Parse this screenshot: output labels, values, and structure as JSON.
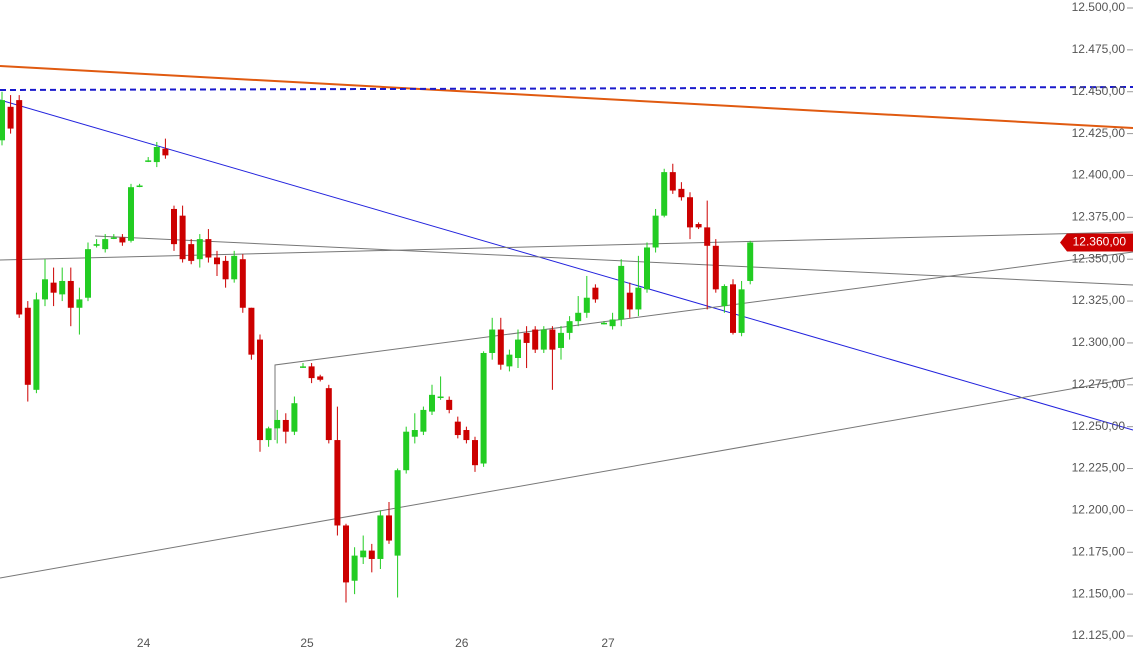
{
  "chart_data": {
    "type": "candlestick",
    "categories": [
      null,
      null,
      null,
      null,
      null,
      null,
      null,
      null,
      null,
      null,
      null,
      null,
      null,
      null,
      null,
      null,
      "24",
      null,
      null,
      null,
      null,
      null,
      null,
      null,
      null,
      null,
      null,
      null,
      null,
      null,
      null,
      null,
      null,
      null,
      null,
      "25",
      null,
      null,
      null,
      null,
      null,
      null,
      null,
      null,
      null,
      null,
      null,
      null,
      null,
      null,
      null,
      null,
      null,
      "26",
      null,
      null,
      null,
      null,
      null,
      null,
      null,
      null,
      null,
      null,
      null,
      null,
      null,
      null,
      null,
      null,
      "27",
      null,
      null,
      null,
      null,
      null,
      null,
      null,
      null,
      null,
      null,
      null,
      null,
      null,
      null,
      null,
      null,
      null
    ],
    "open": [
      12421,
      12441,
      12445,
      12321,
      12272,
      12326,
      12336,
      12329,
      12337,
      12321,
      12327,
      12358,
      12356,
      12363,
      12363,
      12361,
      12394,
      12409,
      12408,
      12416,
      12380,
      12376,
      12359,
      12350,
      12362,
      12351,
      12349,
      12338,
      12350,
      12321,
      12302,
      12242,
      12249,
      12254,
      12247,
      12286,
      12286,
      12280,
      12273,
      12242,
      12191,
      12158,
      12172,
      12176,
      12171,
      12197,
      12173,
      12224,
      12244,
      12247,
      12259,
      12268,
      12266,
      12253,
      12248,
      12242,
      12228,
      12294,
      12308,
      12286,
      12291,
      12306,
      12308,
      12296,
      12308,
      12297,
      12306,
      12313,
      12318,
      12333,
      12312,
      12310,
      12314,
      12330,
      12320,
      12332,
      12357,
      12376,
      12402,
      12392,
      12387,
      12371,
      12369,
      12358,
      12322,
      12335,
      12306,
      12337
    ],
    "high": [
      12450,
      12448,
      12448,
      12325,
      12330,
      12350,
      12345,
      12345,
      12345,
      12333,
      12360,
      12362,
      12365,
      12365,
      12365,
      12395,
      12395,
      12411,
      12420,
      12422,
      12382,
      12382,
      12362,
      12365,
      12368,
      12355,
      12352,
      12355,
      12353,
      12321,
      12305,
      12250,
      12260,
      12258,
      12268,
      12288,
      12288,
      12281,
      12275,
      12262,
      12192,
      12178,
      12185,
      12180,
      12200,
      12205,
      12225,
      12250,
      12258,
      12262,
      12275,
      12280,
      12268,
      12256,
      12250,
      12244,
      12295,
      12315,
      12315,
      12296,
      12308,
      12310,
      12310,
      12310,
      12310,
      12310,
      12316,
      12328,
      12340,
      12335,
      12313,
      12318,
      12350,
      12336,
      12352,
      12360,
      12380,
      12404,
      12407,
      12396,
      12390,
      12372,
      12385,
      12362,
      12335,
      12338,
      12337,
      12361
    ],
    "low": [
      12418,
      12425,
      12315,
      12265,
      12270,
      12322,
      12322,
      12325,
      12310,
      12305,
      12325,
      12357,
      12354,
      12362,
      12358,
      12360,
      12393,
      12408,
      12405,
      12410,
      12355,
      12348,
      12347,
      12345,
      12348,
      12340,
      12333,
      12336,
      12318,
      12290,
      12235,
      12238,
      12240,
      12240,
      12245,
      12285,
      12276,
      12277,
      12240,
      12185,
      12145,
      12150,
      12168,
      12163,
      12165,
      12180,
      12148,
      12222,
      12240,
      12245,
      12257,
      12266,
      12258,
      12243,
      12240,
      12223,
      12226,
      12290,
      12284,
      12283,
      12285,
      12285,
      12294,
      12294,
      12272,
      12290,
      12302,
      12310,
      12315,
      12324,
      12311,
      12308,
      12310,
      12315,
      12316,
      12330,
      12354,
      12375,
      12389,
      12385,
      12362,
      12368,
      12320,
      12330,
      12318,
      12305,
      12304,
      12335
    ],
    "close": [
      12445,
      12428,
      12317,
      12275,
      12326,
      12338,
      12330,
      12337,
      12321,
      12326,
      12356,
      12359,
      12362,
      12363,
      12360,
      12393,
      12394,
      12409,
      12417,
      12412,
      12359,
      12350,
      12349,
      12362,
      12351,
      12347,
      12338,
      12352,
      12321,
      12293,
      12242,
      12249,
      12254,
      12247,
      12264,
      12286,
      12279,
      12278,
      12242,
      12191,
      12157,
      12173,
      12176,
      12171,
      12197,
      12182,
      12224,
      12247,
      12248,
      12260,
      12269,
      12268,
      12260,
      12245,
      12242,
      12227,
      12294,
      12308,
      12287,
      12293,
      12302,
      12300,
      12296,
      12308,
      12296,
      12306,
      12313,
      12318,
      12327,
      12326,
      12312,
      12314,
      12346,
      12320,
      12333,
      12357,
      12376,
      12402,
      12391,
      12387,
      12369,
      12369,
      12358,
      12332,
      12334,
      12306,
      12332,
      12360
    ],
    "up_color": "#22cc22",
    "down_color": "#cc0000",
    "ylim": [
      12125,
      12500
    ],
    "yticks": [
      {
        "value": 12125,
        "label": "12.125,00"
      },
      {
        "value": 12150,
        "label": "12.150,00"
      },
      {
        "value": 12175,
        "label": "12.175,00"
      },
      {
        "value": 12200,
        "label": "12.200,00"
      },
      {
        "value": 12225,
        "label": "12.225,00"
      },
      {
        "value": 12250,
        "label": "12.250,00"
      },
      {
        "value": 12275,
        "label": "12.275,00"
      },
      {
        "value": 12300,
        "label": "12.300,00"
      },
      {
        "value": 12325,
        "label": "12.325,00"
      },
      {
        "value": 12350,
        "label": "12.350,00"
      },
      {
        "value": 12375,
        "label": "12.375,00"
      },
      {
        "value": 12400,
        "label": "12.400,00"
      },
      {
        "value": 12425,
        "label": "12.425,00"
      },
      {
        "value": 12450,
        "label": "12.450,00"
      },
      {
        "value": 12475,
        "label": "12.475,00"
      },
      {
        "value": 12500,
        "label": "12.500,00"
      }
    ],
    "last_price": {
      "value": 12360,
      "label": "12.360,00"
    },
    "grid": false
  }
}
